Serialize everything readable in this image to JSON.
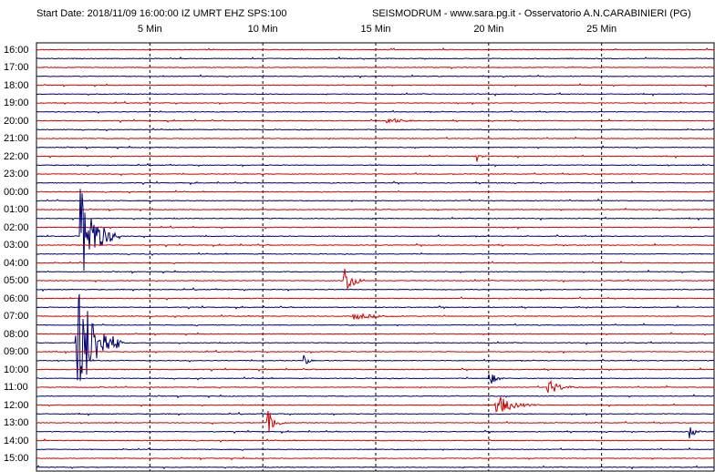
{
  "header": {
    "start_text": "Start Date: 2018/11/09 16:00:00 IZ UMRT     EHZ  SPS:100",
    "station_text": "SEISMODRUM - www.sara.pg.it - Osservatorio A.N.CARABINIERI (PG)"
  },
  "chart_data": {
    "type": "line",
    "title": "",
    "xlabel": "",
    "ylabel": "",
    "x_unit": "Min",
    "xlim": [
      0,
      30
    ],
    "x_ticks": [
      {
        "value": 5,
        "label": "5 Min"
      },
      {
        "value": 10,
        "label": "10 Min"
      },
      {
        "value": 15,
        "label": "15 Min"
      },
      {
        "value": 20,
        "label": "20 Min"
      },
      {
        "value": 25,
        "label": "25 Min"
      }
    ],
    "rows_per_hour": 2,
    "hour_labels": [
      "16:00",
      "17:00",
      "18:00",
      "19:00",
      "20:00",
      "21:00",
      "22:00",
      "23:00",
      "00:00",
      "01:00",
      "02:00",
      "03:00",
      "04:00",
      "05:00",
      "06:00",
      "07:00",
      "08:00",
      "09:00",
      "10:00",
      "11:00",
      "12:00",
      "13:00",
      "14:00",
      "15:00"
    ],
    "trace_colors": [
      "#d00000",
      "#00006e"
    ],
    "grid": {
      "vertical_dashed": true,
      "frame_color": "#000000",
      "grid_color": "#000000"
    },
    "events": [
      {
        "row": 21,
        "minute": 1.9,
        "amplitude": 60,
        "duration": 1.8,
        "color": "#00006e"
      },
      {
        "row": 26,
        "minute": 13.6,
        "amplitude": 20,
        "duration": 1.0,
        "color": "#d00000"
      },
      {
        "row": 33,
        "minute": 1.7,
        "amplitude": 80,
        "duration": 2.2,
        "color": "#d00000"
      },
      {
        "row": 35,
        "minute": 11.8,
        "amplitude": 10,
        "duration": 0.5,
        "color": "#d00000"
      },
      {
        "row": 37,
        "minute": 20.0,
        "amplitude": 10,
        "duration": 0.8,
        "color": "#d00000"
      },
      {
        "row": 38,
        "minute": 22.6,
        "amplitude": 10,
        "duration": 1.5,
        "color": "#00006e"
      },
      {
        "row": 40,
        "minute": 20.3,
        "amplitude": 14,
        "duration": 1.8,
        "color": "#00006e"
      },
      {
        "row": 42,
        "minute": 10.2,
        "amplitude": 16,
        "duration": 0.9,
        "color": "#d00000"
      },
      {
        "row": 43,
        "minute": 28.9,
        "amplitude": 9,
        "duration": 0.6,
        "color": "#00006e"
      },
      {
        "row": 12,
        "minute": 19.5,
        "amplitude": 7,
        "duration": 0.5,
        "color": "#00006e"
      },
      {
        "row": 8,
        "minute": 15.5,
        "amplitude": 4,
        "duration": 2.0,
        "color": "#00006e"
      },
      {
        "row": 30,
        "minute": 14.0,
        "amplitude": 4,
        "duration": 3.0,
        "color": "#00006e"
      }
    ]
  }
}
